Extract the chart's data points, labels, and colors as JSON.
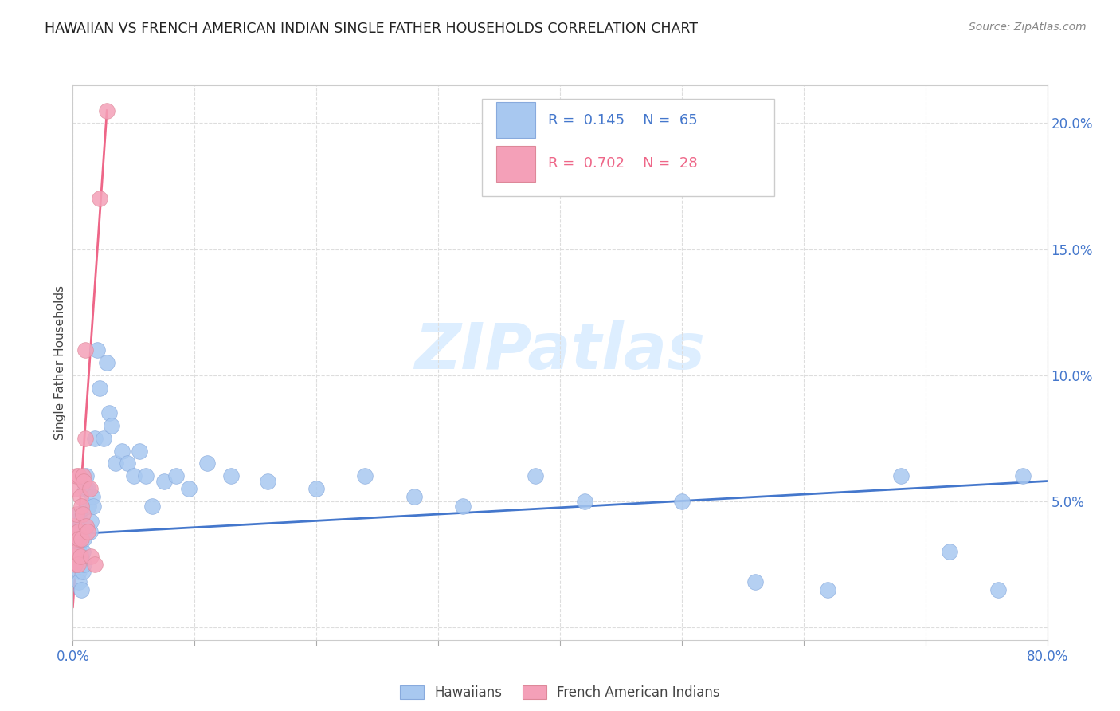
{
  "title": "HAWAIIAN VS FRENCH AMERICAN INDIAN SINGLE FATHER HOUSEHOLDS CORRELATION CHART",
  "source": "Source: ZipAtlas.com",
  "ylabel": "Single Father Households",
  "xlim": [
    0.0,
    0.8
  ],
  "ylim": [
    -0.005,
    0.215
  ],
  "xticks": [
    0.0,
    0.1,
    0.2,
    0.3,
    0.4,
    0.5,
    0.6,
    0.7,
    0.8
  ],
  "xticklabels": [
    "0.0%",
    "",
    "",
    "",
    "",
    "",
    "",
    "",
    "80.0%"
  ],
  "yticks_right": [
    0.0,
    0.05,
    0.1,
    0.15,
    0.2
  ],
  "yticklabels_right": [
    "",
    "5.0%",
    "10.0%",
    "15.0%",
    "20.0%"
  ],
  "hawaiian_color": "#a8c8f0",
  "french_color": "#f4a0b8",
  "hawaiian_line_color": "#4477cc",
  "french_line_color": "#ee6688",
  "legend_label1": "Hawaiians",
  "legend_label2": "French American Indians",
  "watermark": "ZIPatlas",
  "background_color": "#ffffff",
  "hawaiians_x": [
    0.001,
    0.002,
    0.002,
    0.003,
    0.003,
    0.003,
    0.004,
    0.004,
    0.004,
    0.005,
    0.005,
    0.005,
    0.005,
    0.006,
    0.006,
    0.007,
    0.007,
    0.007,
    0.008,
    0.008,
    0.008,
    0.009,
    0.009,
    0.01,
    0.01,
    0.011,
    0.012,
    0.013,
    0.014,
    0.015,
    0.016,
    0.017,
    0.018,
    0.02,
    0.022,
    0.025,
    0.028,
    0.03,
    0.032,
    0.035,
    0.04,
    0.045,
    0.05,
    0.055,
    0.06,
    0.065,
    0.075,
    0.085,
    0.095,
    0.11,
    0.13,
    0.16,
    0.2,
    0.24,
    0.28,
    0.32,
    0.38,
    0.42,
    0.5,
    0.56,
    0.62,
    0.68,
    0.72,
    0.76,
    0.78
  ],
  "hawaiians_y": [
    0.04,
    0.038,
    0.03,
    0.042,
    0.035,
    0.028,
    0.038,
    0.025,
    0.032,
    0.045,
    0.03,
    0.022,
    0.018,
    0.04,
    0.025,
    0.042,
    0.028,
    0.015,
    0.038,
    0.03,
    0.022,
    0.035,
    0.025,
    0.055,
    0.04,
    0.06,
    0.055,
    0.048,
    0.038,
    0.042,
    0.052,
    0.048,
    0.075,
    0.11,
    0.095,
    0.075,
    0.105,
    0.085,
    0.08,
    0.065,
    0.07,
    0.065,
    0.06,
    0.07,
    0.06,
    0.048,
    0.058,
    0.06,
    0.055,
    0.065,
    0.06,
    0.058,
    0.055,
    0.06,
    0.052,
    0.048,
    0.06,
    0.05,
    0.05,
    0.018,
    0.015,
    0.06,
    0.03,
    0.015,
    0.06
  ],
  "french_x": [
    0.001,
    0.001,
    0.002,
    0.002,
    0.002,
    0.003,
    0.003,
    0.003,
    0.004,
    0.004,
    0.005,
    0.005,
    0.006,
    0.006,
    0.007,
    0.007,
    0.008,
    0.008,
    0.009,
    0.01,
    0.01,
    0.011,
    0.012,
    0.014,
    0.015,
    0.018,
    0.022,
    0.028
  ],
  "french_y": [
    0.04,
    0.028,
    0.055,
    0.035,
    0.025,
    0.06,
    0.045,
    0.03,
    0.038,
    0.025,
    0.06,
    0.035,
    0.052,
    0.028,
    0.048,
    0.035,
    0.06,
    0.045,
    0.058,
    0.11,
    0.075,
    0.04,
    0.038,
    0.055,
    0.028,
    0.025,
    0.17,
    0.205
  ],
  "haw_line_x": [
    0.0,
    0.8
  ],
  "haw_line_y": [
    0.037,
    0.058
  ],
  "fre_line_x": [
    0.0,
    0.028
  ],
  "fre_line_y": [
    0.008,
    0.205
  ]
}
